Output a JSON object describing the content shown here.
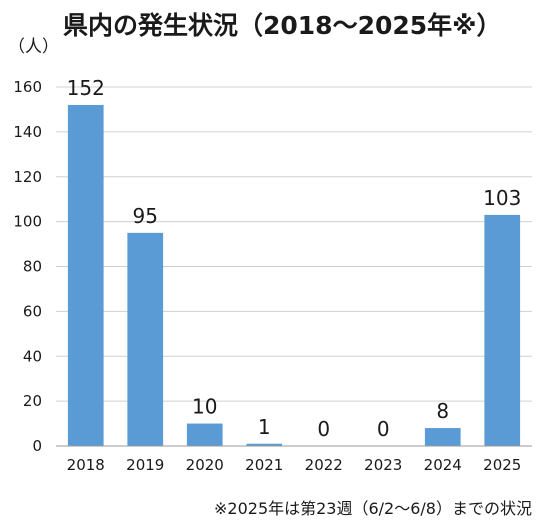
{
  "chart_data": {
    "type": "bar",
    "title": "県内の発生状況（2018～2025年※）",
    "ylabel": "（人）",
    "xlabel": "",
    "categories": [
      "2018",
      "2019",
      "2020",
      "2021",
      "2022",
      "2023",
      "2024",
      "2025"
    ],
    "values": [
      152,
      95,
      10,
      1,
      0,
      0,
      8,
      103
    ],
    "data_labels": [
      "152",
      "95",
      "10",
      "1",
      "0",
      "0",
      "8",
      "103"
    ],
    "yticks": [
      "0",
      "20",
      "40",
      "60",
      "80",
      "100",
      "120",
      "140",
      "160"
    ],
    "ylim": [
      0,
      160
    ],
    "grid": true,
    "bar_color": "#5b9bd5",
    "note": "※2025年は第23週（6/2～6/8）までの状況"
  }
}
